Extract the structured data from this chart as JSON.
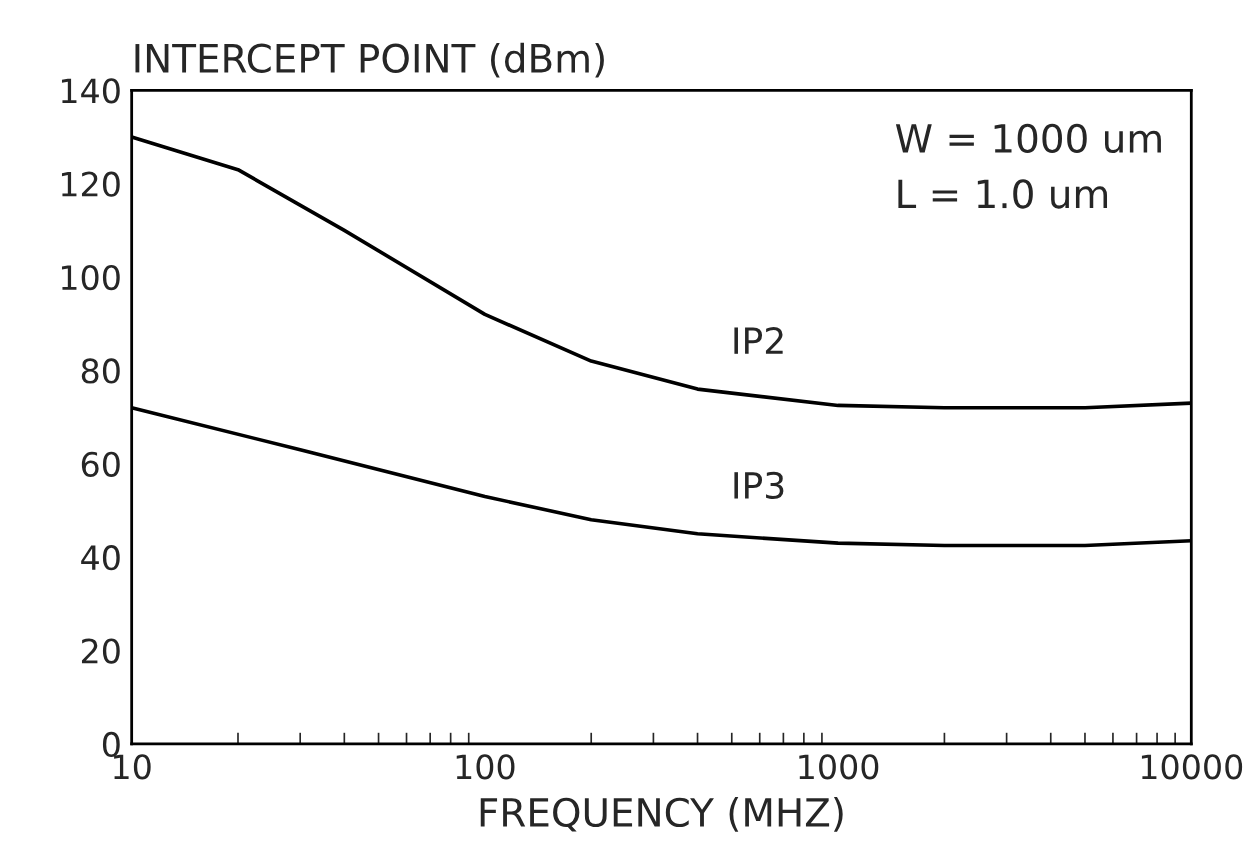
{
  "chart_data": {
    "type": "line",
    "ylabel": "INTERCEPT POINT (dBm)",
    "xlabel": "FREQUENCY (MHZ)",
    "log": "x",
    "xlim": [
      10,
      10000
    ],
    "xticks": [
      10,
      100,
      1000,
      10000
    ],
    "ylim": [
      0,
      140
    ],
    "yticks": [
      0,
      20,
      40,
      60,
      80,
      100,
      120,
      140
    ],
    "grid": false,
    "legend": false,
    "marker": "none",
    "line_style": "solid",
    "annotations": [
      "W = 1000 um",
      "L = 1.0 um"
    ],
    "series": [
      {
        "name": "IP2",
        "color": "#000000",
        "x": [
          10,
          20,
          40,
          100,
          200,
          400,
          1000,
          2000,
          5000,
          10000
        ],
        "values": [
          130,
          123,
          110,
          92,
          82,
          76,
          72.5,
          72,
          72,
          73
        ]
      },
      {
        "name": "IP3",
        "color": "#000000",
        "x": [
          10,
          30,
          100,
          200,
          400,
          1000,
          2000,
          5000,
          10000
        ],
        "values": [
          72,
          63,
          53,
          48,
          45,
          43,
          42.5,
          42.5,
          43.5
        ]
      }
    ]
  }
}
